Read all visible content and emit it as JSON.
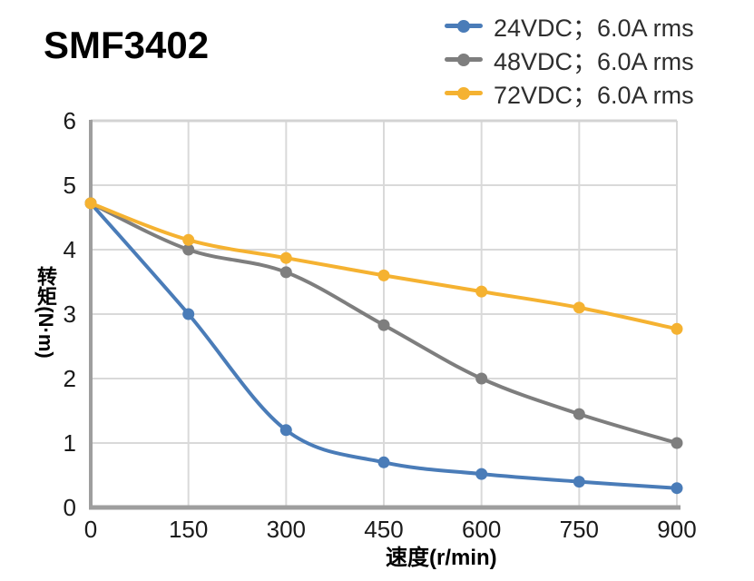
{
  "title": "SMF3402",
  "chart_data": {
    "type": "line",
    "title": "SMF3402",
    "xlabel": "速度(r/min)",
    "ylabel": "转矩(N·m)",
    "xlim": [
      0,
      900
    ],
    "ylim": [
      0,
      6
    ],
    "x_ticks": [
      0,
      150,
      300,
      450,
      600,
      750,
      900
    ],
    "y_ticks": [
      0,
      1,
      2,
      3,
      4,
      5,
      6
    ],
    "grid": true,
    "legend_position": "top-right",
    "x": [
      0,
      150,
      300,
      450,
      600,
      750,
      900
    ],
    "series": [
      {
        "name": "24VDC；6.0A rms",
        "color": "#4A7CB8",
        "values": [
          4.72,
          3.0,
          1.2,
          0.7,
          0.52,
          0.4,
          0.3
        ]
      },
      {
        "name": "48VDC；6.0A rms",
        "color": "#7E7E7E",
        "values": [
          4.72,
          4.0,
          3.65,
          2.83,
          2.0,
          1.45,
          1.0
        ]
      },
      {
        "name": "72VDC；6.0A rms",
        "color": "#F5B231",
        "values": [
          4.72,
          4.15,
          3.87,
          3.6,
          3.35,
          3.1,
          2.77
        ]
      }
    ]
  },
  "colors": {
    "axis": "#9E9E9E",
    "grid": "#D9D9D9",
    "top_border": "#D3D3D3",
    "tick_text": "#1A1A1A",
    "legend_text": "#2E2E2E"
  }
}
